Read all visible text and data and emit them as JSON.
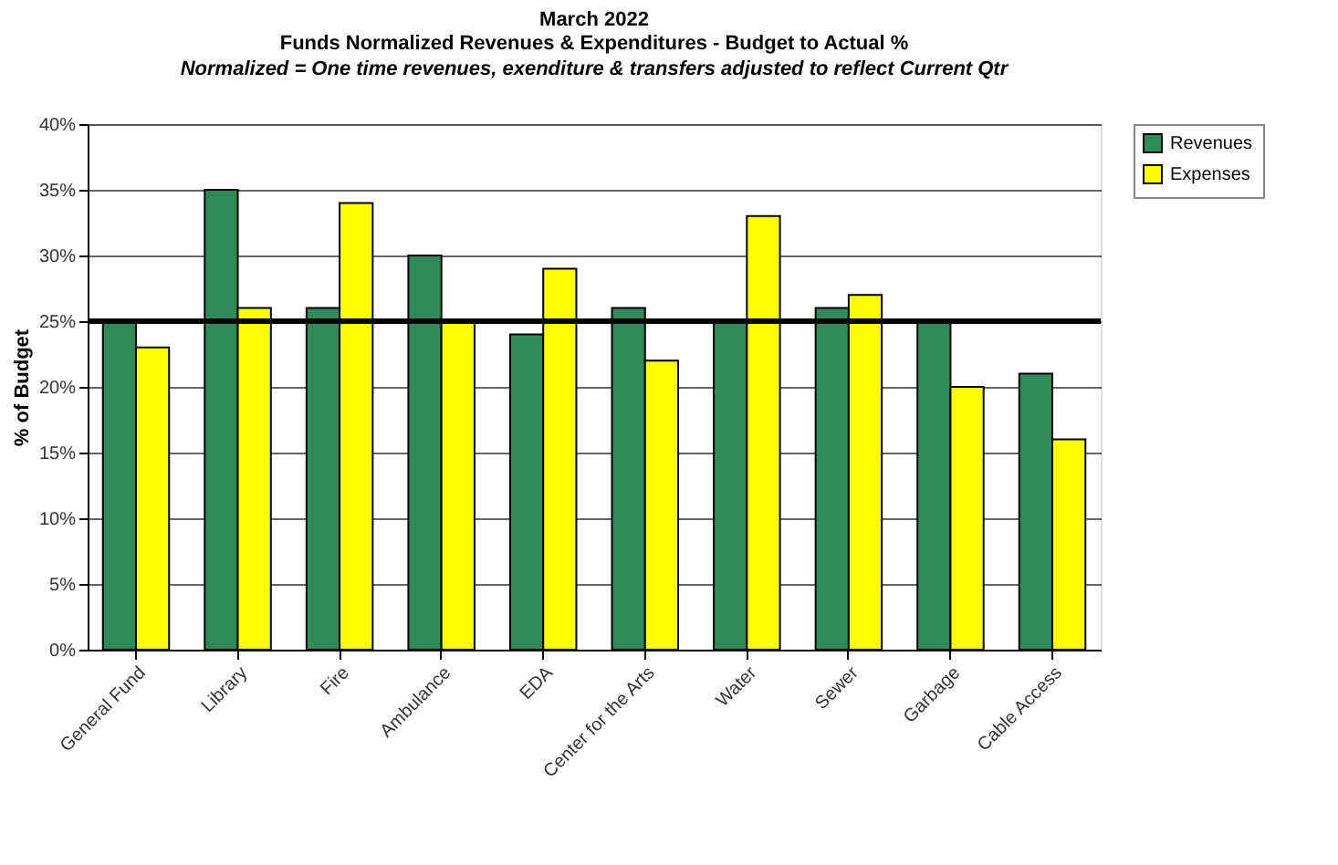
{
  "chart_data": {
    "type": "bar",
    "title": "March 2022",
    "subtitle": "Funds Normalized Revenues & Expenditures - Budget to Actual %",
    "annotations": [
      "Normalized = One time revenues, exenditure & transfers adjusted to reflect Current Qtr"
    ],
    "ylabel": "% of Budget",
    "categories": [
      "General Fund",
      "Library",
      "Fire",
      "Ambulance",
      "EDA",
      "Center for the Arts",
      "Water",
      "Sewer",
      "Garbage",
      "Cable Access"
    ],
    "series": [
      {
        "name": "Revenues",
        "color": "#2e8b57",
        "values": [
          25,
          35,
          26,
          30,
          24,
          26,
          25,
          26,
          25,
          21
        ]
      },
      {
        "name": "Expenses",
        "color": "#ffff00",
        "values": [
          23,
          26,
          34,
          25,
          29,
          22,
          33,
          27,
          20,
          16
        ]
      }
    ],
    "ylim": [
      0,
      40
    ],
    "yticks": [
      {
        "value": 0,
        "label": "0%"
      },
      {
        "value": 5,
        "label": "5%"
      },
      {
        "value": 10,
        "label": "10%"
      },
      {
        "value": 15,
        "label": "15%"
      },
      {
        "value": 20,
        "label": "20%"
      },
      {
        "value": 25,
        "label": "25%"
      },
      {
        "value": 30,
        "label": "30%"
      },
      {
        "value": 35,
        "label": "35%"
      },
      {
        "value": 40,
        "label": "40%"
      }
    ],
    "ref_lines": [
      {
        "axis": "y",
        "value": 25,
        "color": "#000000"
      }
    ],
    "grid": "y",
    "legend": "right"
  }
}
